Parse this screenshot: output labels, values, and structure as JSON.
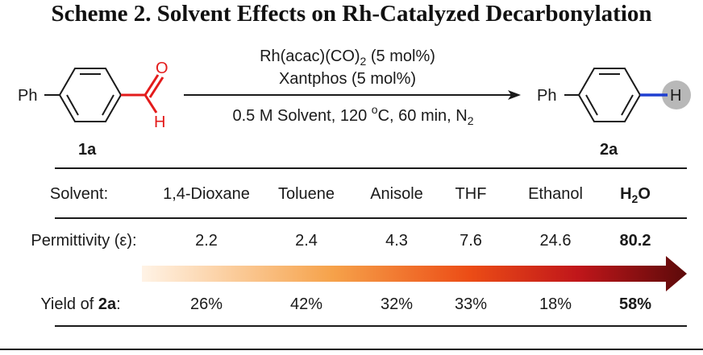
{
  "title": "Scheme 2. Solvent Effects on Rh-Catalyzed Decarbonylation",
  "reaction": {
    "substituent_left": "Ph",
    "substituent_right": "Ph",
    "aldehyde_o": "O",
    "aldehyde_h": "H",
    "product_h": "H",
    "label_reactant": "1a",
    "label_product": "2a",
    "condition_1_main": "Rh(acac)(CO)",
    "condition_1_sub": "2",
    "condition_1_tail": " (5 mol%)",
    "condition_2": "Xantphos (5 mol%)",
    "condition_3_a": "0.5 M Solvent, 120 ",
    "condition_3_deg": "o",
    "condition_3_b": "C, 60 min, N",
    "condition_3_sub": "2"
  },
  "table": {
    "solvent_label": "Solvent:",
    "solvents": [
      "1,4-Dioxane",
      "Toluene",
      "Anisole",
      "THF",
      "Ethanol"
    ],
    "water_main": "H",
    "water_sub": "2",
    "water_tail": "O",
    "permittivity_label": "Permittivity (ε):",
    "permittivity": [
      "2.2",
      "2.4",
      "4.3",
      "7.6",
      "24.6",
      "80.2"
    ],
    "yield_label_prefix": "Yield of ",
    "yield_label_bold": "2a",
    "yield_label_suffix": ":",
    "yields": [
      "26%",
      "42%",
      "32%",
      "33%",
      "18%",
      "58%"
    ]
  },
  "colors": {
    "highlight_red": "#e31b1b",
    "highlight_blue": "#1f3fd1",
    "highlight_circle": "#b8b8b8",
    "gradient_start": "#fff3e6",
    "gradient_mid": "#f4731c",
    "gradient_end": "#5c0a0a"
  }
}
